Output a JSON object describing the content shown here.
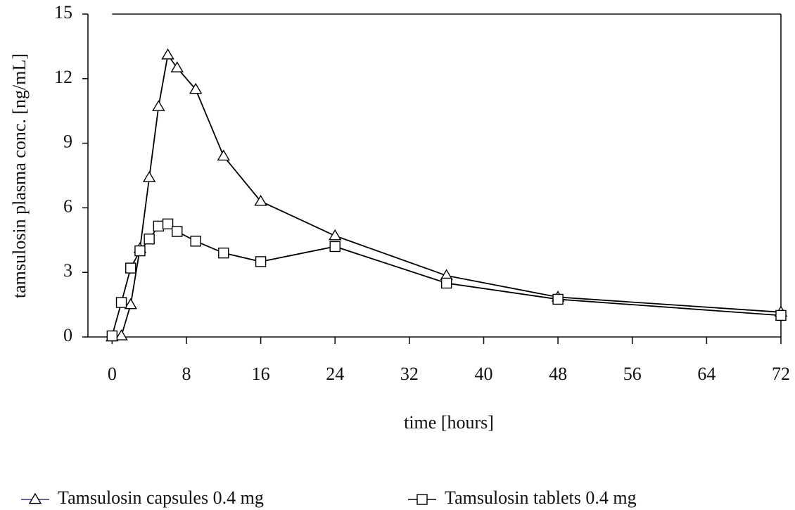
{
  "chart_data": {
    "type": "line",
    "xlabel": "time [hours]",
    "ylabel": "tamsulosin plasma conc. [ng/mL]",
    "x": [
      0,
      1,
      2,
      3,
      4,
      5,
      6,
      7,
      9,
      12,
      16,
      24,
      36,
      48,
      72
    ],
    "series": [
      {
        "name": "Tamsulosin capsules 0.4 mg",
        "color": "#000000",
        "marker": "triangle",
        "values": [
          0,
          0.05,
          1.5,
          4.1,
          7.4,
          10.7,
          13.1,
          12.5,
          11.5,
          8.4,
          6.3,
          4.7,
          2.85,
          1.85,
          1.15
        ]
      },
      {
        "name": "Tamsulosin tablets 0.4 mg",
        "color": "#000000",
        "marker": "square",
        "values": [
          0.05,
          1.6,
          3.2,
          4.0,
          4.55,
          5.15,
          5.25,
          4.9,
          4.45,
          3.9,
          3.5,
          4.2,
          2.5,
          1.75,
          1.0
        ]
      }
    ],
    "xlim": [
      -2.6,
      72
    ],
    "xticks": [
      0,
      8,
      16,
      24,
      32,
      40,
      48,
      56,
      64,
      72
    ],
    "ylim": [
      0,
      15
    ],
    "yticks": [
      0,
      3,
      6,
      9,
      12,
      15
    ],
    "grid": false
  }
}
